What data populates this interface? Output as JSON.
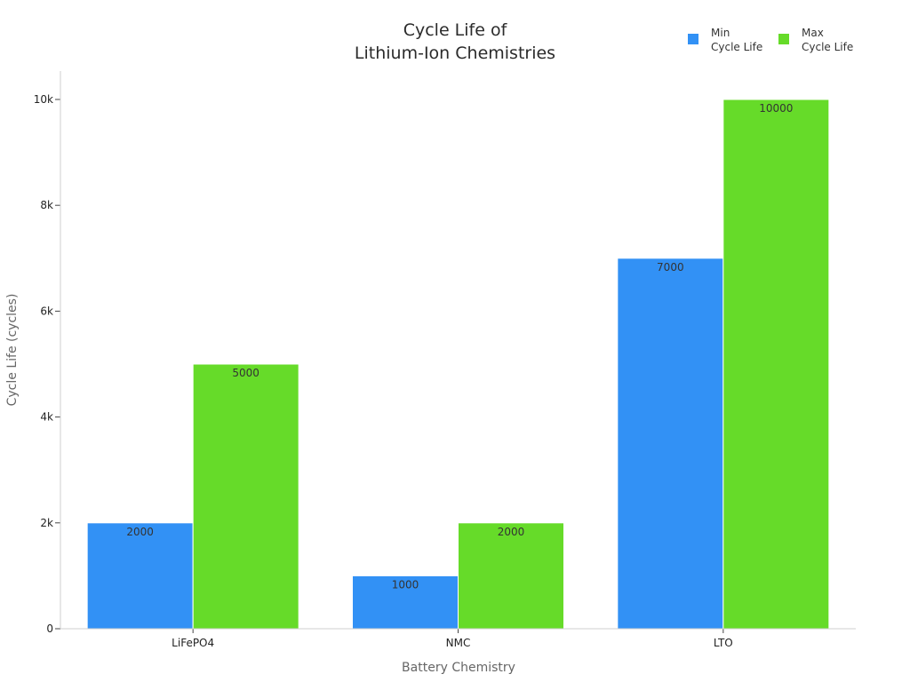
{
  "chart_data": {
    "type": "bar",
    "title_lines": [
      "Cycle Life of",
      "Lithium-Ion Chemistries"
    ],
    "xlabel": "Battery Chemistry",
    "ylabel": "Cycle Life (cycles)",
    "categories": [
      "LiFePO4",
      "NMC",
      "LTO"
    ],
    "ylim": [
      0,
      10500
    ],
    "y_ticks": [
      0,
      2000,
      4000,
      6000,
      8000,
      10000
    ],
    "y_tick_labels": [
      "0",
      "2k",
      "4k",
      "6k",
      "8k",
      "10k"
    ],
    "grid": false,
    "legend_position": "top-right",
    "series": [
      {
        "name_lines": [
          "Min",
          "Cycle Life"
        ],
        "color": "#3291f5",
        "values": [
          2000,
          1000,
          7000
        ],
        "labels": [
          "2000",
          "1000",
          "7000"
        ]
      },
      {
        "name_lines": [
          "Max",
          "Cycle Life"
        ],
        "color": "#66db29",
        "values": [
          5000,
          2000,
          10000
        ],
        "labels": [
          "5000",
          "2000",
          "10000"
        ]
      }
    ]
  }
}
